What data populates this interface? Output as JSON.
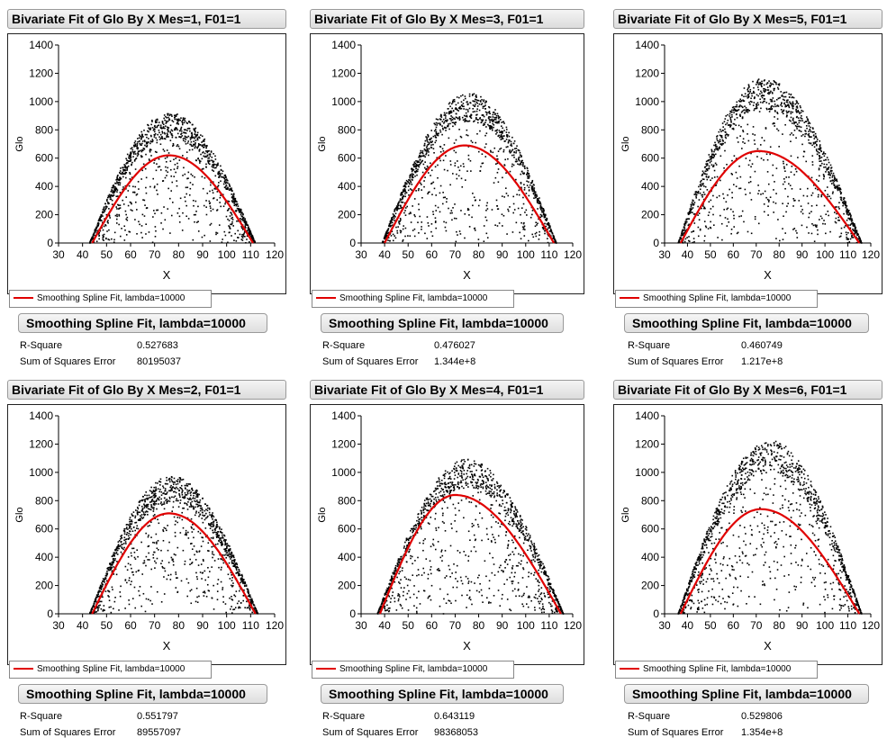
{
  "colors": {
    "fit_line": "#e00000",
    "points": "#000000"
  },
  "chart_data": [
    {
      "type": "scatter",
      "title": "Bivariate Fit of Glo By X Mes=1, F01=1",
      "xlabel": "X",
      "ylabel": "Glo",
      "xlim": [
        30,
        120
      ],
      "ylim": [
        0,
        1400
      ],
      "xticks": [
        30,
        40,
        50,
        60,
        70,
        80,
        90,
        100,
        110,
        120
      ],
      "yticks": [
        0,
        200,
        400,
        600,
        800,
        1000,
        1200,
        1400
      ],
      "scatter": {
        "xmin": 43,
        "xmax": 112,
        "peak_x": 76,
        "peak_y": 870
      },
      "fit": {
        "name": "Smoothing Spline Fit, lambda=10000",
        "xmin": 44,
        "xmax": 111,
        "peak_x": 76,
        "peak_y": 620
      },
      "legend": "Smoothing Spline Fit, lambda=10000",
      "fit_header": "Smoothing Spline Fit, lambda=10000",
      "stats": [
        {
          "label": "R-Square",
          "value": "0.527683"
        },
        {
          "label": "Sum of Squares Error",
          "value": "80195037"
        }
      ]
    },
    {
      "type": "scatter",
      "title": "Bivariate Fit of Glo By X Mes=3, F01=1",
      "xlabel": "X",
      "ylabel": "Glo",
      "xlim": [
        30,
        120
      ],
      "ylim": [
        0,
        1400
      ],
      "xticks": [
        30,
        40,
        50,
        60,
        70,
        80,
        90,
        100,
        110,
        120
      ],
      "yticks": [
        0,
        200,
        400,
        600,
        800,
        1000,
        1200,
        1400
      ],
      "scatter": {
        "xmin": 39,
        "xmax": 113,
        "peak_x": 76,
        "peak_y": 1000
      },
      "fit": {
        "name": "Smoothing Spline Fit, lambda=10000",
        "xmin": 40,
        "xmax": 112,
        "peak_x": 74,
        "peak_y": 690
      },
      "legend": "Smoothing Spline Fit, lambda=10000",
      "fit_header": "Smoothing Spline Fit, lambda=10000",
      "stats": [
        {
          "label": "R-Square",
          "value": "0.476027"
        },
        {
          "label": "Sum of Squares Error",
          "value": "1.344e+8"
        }
      ]
    },
    {
      "type": "scatter",
      "title": "Bivariate Fit of Glo By X Mes=5, F01=1",
      "xlabel": "X",
      "ylabel": "Glo",
      "xlim": [
        30,
        120
      ],
      "ylim": [
        0,
        1400
      ],
      "xticks": [
        30,
        40,
        50,
        60,
        70,
        80,
        90,
        100,
        110,
        120
      ],
      "yticks": [
        0,
        200,
        400,
        600,
        800,
        1000,
        1200,
        1400
      ],
      "scatter": {
        "xmin": 36,
        "xmax": 116,
        "peak_x": 73,
        "peak_y": 1100
      },
      "fit": {
        "name": "Smoothing Spline Fit, lambda=10000",
        "xmin": 37,
        "xmax": 115,
        "peak_x": 71,
        "peak_y": 650
      },
      "legend": "Smoothing Spline Fit, lambda=10000",
      "fit_header": "Smoothing Spline Fit, lambda=10000",
      "stats": [
        {
          "label": "R-Square",
          "value": "0.460749"
        },
        {
          "label": "Sum of Squares Error",
          "value": "1.217e+8"
        }
      ]
    },
    {
      "type": "scatter",
      "title": "Bivariate Fit of Glo By X Mes=2, F01=1",
      "xlabel": "X",
      "ylabel": "Glo",
      "xlim": [
        30,
        120
      ],
      "ylim": [
        0,
        1400
      ],
      "xticks": [
        30,
        40,
        50,
        60,
        70,
        80,
        90,
        100,
        110,
        120
      ],
      "yticks": [
        0,
        200,
        400,
        600,
        800,
        1000,
        1200,
        1400
      ],
      "scatter": {
        "xmin": 43,
        "xmax": 113,
        "peak_x": 77,
        "peak_y": 920
      },
      "fit": {
        "name": "Smoothing Spline Fit, lambda=10000",
        "xmin": 44,
        "xmax": 112,
        "peak_x": 76,
        "peak_y": 710
      },
      "legend": "Smoothing Spline Fit, lambda=10000",
      "fit_header": "Smoothing Spline Fit, lambda=10000",
      "stats": [
        {
          "label": "R-Square",
          "value": "0.551797"
        },
        {
          "label": "Sum of Squares Error",
          "value": "89557097"
        }
      ]
    },
    {
      "type": "scatter",
      "title": "Bivariate Fit of Glo By X Mes=4, F01=1",
      "xlabel": "X",
      "ylabel": "Glo",
      "xlim": [
        30,
        120
      ],
      "ylim": [
        0,
        1400
      ],
      "xticks": [
        30,
        40,
        50,
        60,
        70,
        80,
        90,
        100,
        110,
        120
      ],
      "yticks": [
        0,
        200,
        400,
        600,
        800,
        1000,
        1200,
        1400
      ],
      "scatter": {
        "xmin": 37,
        "xmax": 116,
        "peak_x": 75,
        "peak_y": 1030
      },
      "fit": {
        "name": "Smoothing Spline Fit, lambda=10000",
        "xmin": 38,
        "xmax": 115,
        "peak_x": 70,
        "peak_y": 840
      },
      "legend": "Smoothing Spline Fit, lambda=10000",
      "fit_header": "Smoothing Spline Fit, lambda=10000",
      "stats": [
        {
          "label": "R-Square",
          "value": "0.643119"
        },
        {
          "label": "Sum of Squares Error",
          "value": "98368053"
        }
      ]
    },
    {
      "type": "scatter",
      "title": "Bivariate Fit of Glo By X Mes=6, F01=1",
      "xlabel": "X",
      "ylabel": "Glo",
      "xlim": [
        30,
        120
      ],
      "ylim": [
        0,
        1400
      ],
      "xticks": [
        30,
        40,
        50,
        60,
        70,
        80,
        90,
        100,
        110,
        120
      ],
      "yticks": [
        0,
        200,
        400,
        600,
        800,
        1000,
        1200,
        1400
      ],
      "scatter": {
        "xmin": 36,
        "xmax": 116,
        "peak_x": 76,
        "peak_y": 1160
      },
      "fit": {
        "name": "Smoothing Spline Fit, lambda=10000",
        "xmin": 37,
        "xmax": 115,
        "peak_x": 72,
        "peak_y": 740
      },
      "legend": "Smoothing Spline Fit, lambda=10000",
      "fit_header": "Smoothing Spline Fit, lambda=10000",
      "stats": [
        {
          "label": "R-Square",
          "value": "0.529806"
        },
        {
          "label": "Sum of Squares Error",
          "value": "1.354e+8"
        }
      ]
    }
  ]
}
